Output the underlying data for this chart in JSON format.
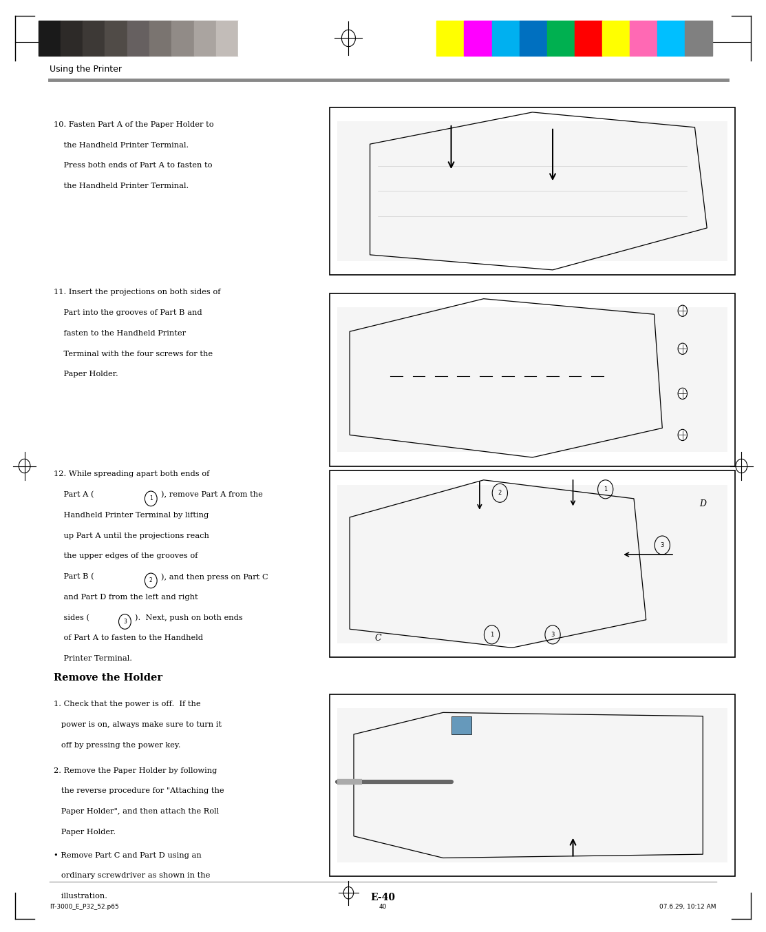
{
  "page_width": 11.13,
  "page_height": 13.53,
  "bg_color": "#ffffff",
  "header_text": "Using the Printer",
  "footer_left": "IT-3000_E_P32_52.p65",
  "footer_center": "40",
  "footer_right": "07.6.29, 10:12 AM",
  "page_number": "E-40",
  "color_bar_left": [
    "#1a1a1a",
    "#2d2a28",
    "#3d3936",
    "#504b47",
    "#666060",
    "#7a7470",
    "#918b87",
    "#aaa4a0",
    "#c2bcb8",
    "#ffffff"
  ],
  "color_bar_right": [
    "#ffff00",
    "#ff00ff",
    "#00b0f0",
    "#0070c0",
    "#00b050",
    "#ff0000",
    "#ffff00",
    "#ff69b4",
    "#00bfff",
    "#808080"
  ],
  "step10_lines": [
    "10. Fasten Part A of the Paper Holder to",
    "    the Handheld Printer Terminal.",
    "    Press both ends of Part A to fasten to",
    "    the Handheld Printer Terminal."
  ],
  "step11_lines": [
    "11. Insert the projections on both sides of",
    "    Part into the grooves of Part B and",
    "    fasten to the Handheld Printer",
    "    Terminal with the four screws for the",
    "    Paper Holder."
  ],
  "step12_line0": "12. While spreading apart both ends of",
  "step12_line1a": "    Part A (",
  "step12_line1b": "), remove Part A from the",
  "step12_line2": "    Handheld Printer Terminal by lifting",
  "step12_line3": "    up Part A until the projections reach",
  "step12_line4": "    the upper edges of the grooves of",
  "step12_line5a": "    Part B (",
  "step12_line5b": "), and then press on Part C",
  "step12_line6": "    and Part D from the left and right",
  "step12_line7a": "    sides (",
  "step12_line7b": ").  Next, push on both ends",
  "step12_line8": "    of Part A to fasten to the Handheld",
  "step12_line9": "    Printer Terminal.",
  "remove_title": "Remove the Holder",
  "rem1_lines": [
    "1. Check that the power is off.  If the",
    "   power is on, always make sure to turn it",
    "   off by pressing the power key."
  ],
  "rem2_lines": [
    "2. Remove the Paper Holder by following",
    "   the reverse procedure for \"Attaching the",
    "   Paper Holder\", and then attach the Roll",
    "   Paper Holder."
  ],
  "rem_bullet_lines": [
    "• Remove Part C and Part D using an",
    "   ordinary screwdriver as shown in the",
    "   illustration."
  ]
}
